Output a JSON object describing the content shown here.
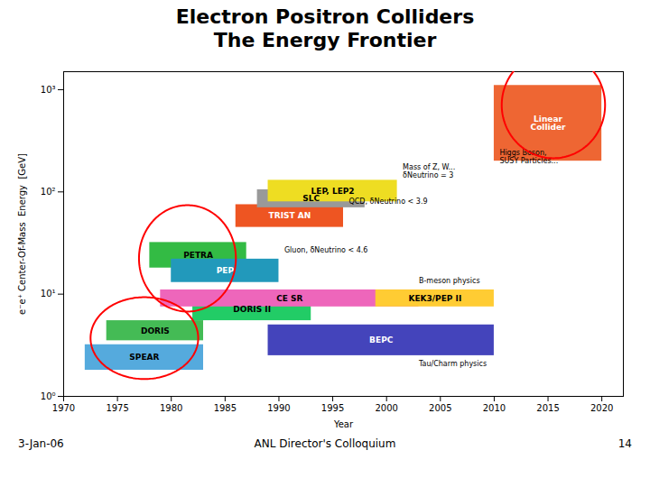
{
  "chart_data": {
    "type": "range_bar",
    "title": "Electron Positron Colliders\nThe Energy Frontier",
    "xlabel": "Year",
    "ylabel": "e⁻e⁺ Center-Of-Mass  Energy  [GeV]",
    "categories": [
      "SPEAR",
      "DORIS",
      "PETRA",
      "PEP",
      "DORIS II",
      "TRIST AN",
      "SLC",
      "LEP, LEP2",
      "CE SR",
      "KEK3/PEP II",
      "BEPC",
      "Linear\nCollider"
    ],
    "x_start": [
      1972,
      1974,
      1978,
      1980,
      1982,
      1986,
      1988,
      1989,
      1979,
      1999,
      1989,
      2010
    ],
    "x_end": [
      1983,
      1983,
      1987,
      1990,
      1993,
      1996,
      1998,
      2001,
      2003,
      2010,
      2010,
      2020
    ],
    "y_bottom": [
      1.8,
      3.5,
      18.0,
      13.0,
      5.5,
      45.0,
      70.0,
      80.0,
      7.5,
      7.5,
      2.5,
      200.0
    ],
    "y_top": [
      3.2,
      5.5,
      32.0,
      22.0,
      9.0,
      75.0,
      105.0,
      130.0,
      11.0,
      11.0,
      5.0,
      1100.0
    ],
    "colors": [
      "#55aadd",
      "#44bb55",
      "#33bb44",
      "#2299bb",
      "#22cc66",
      "#ee5522",
      "#999999",
      "#eedd22",
      "#ee66bb",
      "#ffcc33",
      "#4444bb",
      "#ee6633"
    ],
    "log": "y",
    "xlim": [
      1970,
      2022
    ],
    "xticks": [
      1970,
      1975,
      1980,
      1985,
      1990,
      1995,
      2000,
      2005,
      2010,
      2015,
      2020
    ],
    "ylim": [
      1.0,
      1500.0
    ],
    "yticks": [
      {
        "value": 1,
        "label": "10⁰"
      },
      {
        "value": 10,
        "label": "10¹"
      },
      {
        "value": 100,
        "label": "10²"
      },
      {
        "value": 1000,
        "label": "10³"
      }
    ],
    "annotations": [
      {
        "text": "Mass of Z, W...\nδNeutrino = 3",
        "x": 2001.5,
        "y": 160.0
      },
      {
        "text": "QCD, δNeutrino < 3.9",
        "x": 1996.5,
        "y": 80.0
      },
      {
        "text": "Gluon, δNeutrino < 4.6",
        "x": 1990.5,
        "y": 27.0
      },
      {
        "text": "B-meson physics",
        "x": 2003.0,
        "y": 13.5
      },
      {
        "text": "Higgs Boson,\nSUSY Particles...",
        "x": 2010.5,
        "y": 220.0
      },
      {
        "text": "Tau/Charm physics",
        "x": 2003.0,
        "y": 2.1
      }
    ],
    "ellipses": [
      {
        "x_center": 1981.5,
        "log_y_center": 1.35,
        "x_half_width": 4.5,
        "log_y_half_width": 0.52,
        "color": "red"
      },
      {
        "x_center": 1977.5,
        "log_y_center": 0.57,
        "x_half_width": 5.0,
        "log_y_half_width": 0.4,
        "color": "red"
      },
      {
        "x_center": 2015.5,
        "log_y_center": 2.85,
        "x_half_width": 4.8,
        "log_y_half_width": 0.52,
        "color": "red"
      }
    ],
    "footer": [
      "3-Jan-06",
      "ANL Director's Colloquium",
      "14"
    ]
  }
}
